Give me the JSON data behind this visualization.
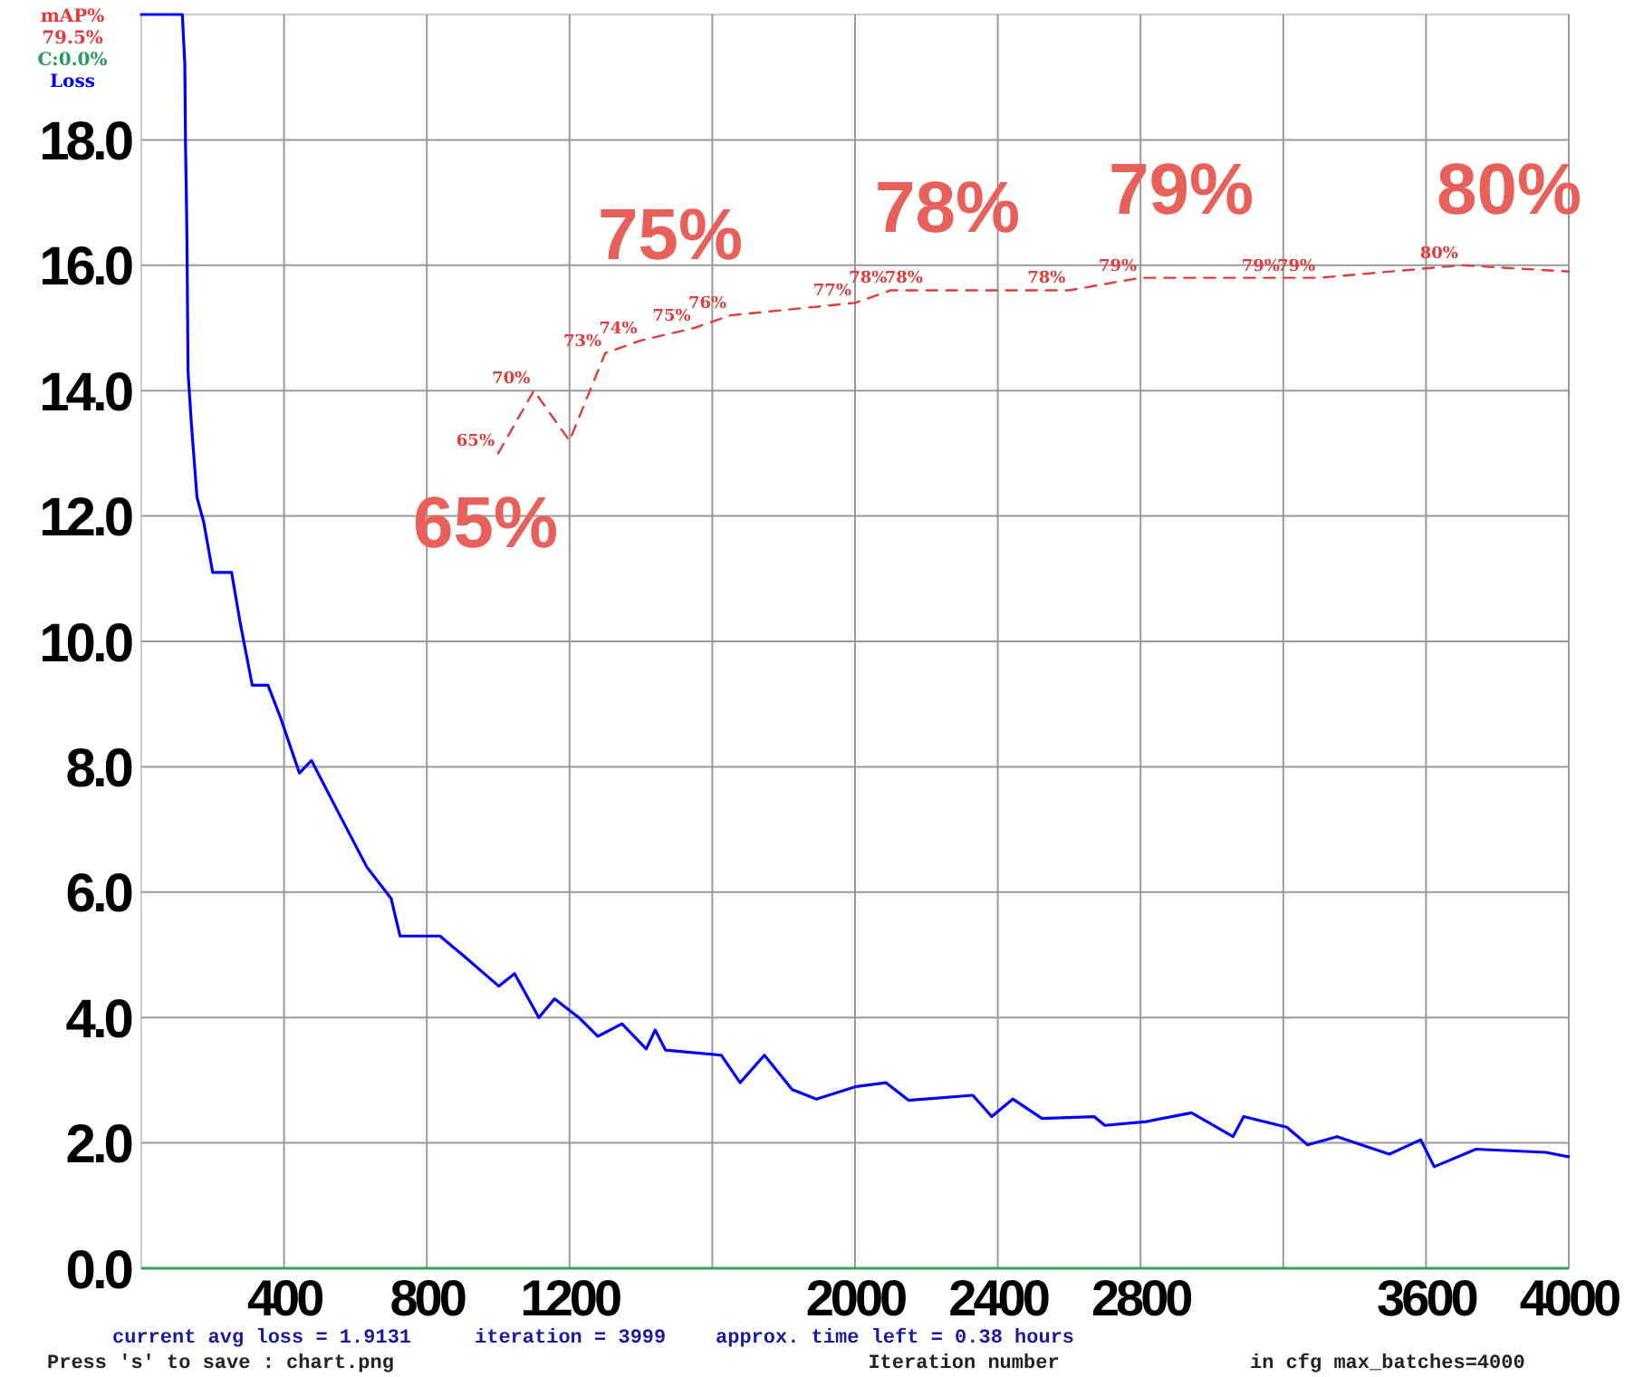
{
  "chart_data": {
    "type": "line",
    "xlabel": "Iteration number",
    "xlim": [
      0,
      4000
    ],
    "xticks": [
      400,
      800,
      1200,
      {
        "value": 1600,
        "label": null
      },
      2000,
      2400,
      2800,
      {
        "value": 3200,
        "label": null
      },
      3600,
      4000
    ],
    "ylim": [
      0,
      20
    ],
    "yticks": [
      {
        "value": 0,
        "label": "0.0"
      },
      {
        "value": 2,
        "label": "2.0"
      },
      {
        "value": 4,
        "label": "4.0"
      },
      {
        "value": 6,
        "label": "6.0"
      },
      {
        "value": 8,
        "label": "8.0"
      },
      {
        "value": 10,
        "label": "10.0"
      },
      {
        "value": 12,
        "label": "12.0"
      },
      {
        "value": 14,
        "label": "14.0"
      },
      {
        "value": 16,
        "label": "16.0"
      },
      {
        "value": 18,
        "label": "18.0"
      }
    ],
    "y2lim": [
      0,
      100
    ],
    "grid": true,
    "legend": "top left",
    "marker": "none",
    "series": [
      {
        "name": "Loss",
        "color": "#0000ff",
        "x": [
          0,
          115,
          122,
          124,
          126,
          128,
          131,
          140,
          156,
          175,
          200,
          253,
          277,
          311,
          355,
          389,
          443,
          477,
          545,
          632,
          700,
          725,
          837,
          900,
          1002,
          1046,
          1114,
          1158,
          1226,
          1279,
          1347,
          1415,
          1440,
          1469,
          1625,
          1678,
          1746,
          1824,
          1892,
          2004,
          2087,
          2150,
          2330,
          2383,
          2442,
          2524,
          2670,
          2700,
          2816,
          2943,
          3059,
          3089,
          3210,
          3268,
          3351,
          3497,
          3585,
          3623,
          3740,
          3935,
          3999
        ],
        "values": [
          20,
          20,
          19.2,
          17.9,
          17.2,
          16.4,
          14.3,
          13.5,
          12.3,
          11.9,
          11.1,
          11.1,
          10.3,
          9.3,
          9.3,
          8.8,
          7.9,
          8.1,
          7.35,
          6.4,
          5.9,
          5.3,
          5.3,
          5.0,
          4.5,
          4.7,
          4.0,
          4.3,
          4.0,
          3.7,
          3.9,
          3.5,
          3.8,
          3.48,
          3.4,
          2.96,
          3.4,
          2.85,
          2.7,
          2.9,
          2.96,
          2.68,
          2.76,
          2.42,
          2.7,
          2.39,
          2.42,
          2.28,
          2.34,
          2.48,
          2.1,
          2.42,
          2.25,
          1.97,
          2.1,
          1.82,
          2.05,
          1.62,
          1.9,
          1.85,
          1.78
        ]
      },
      {
        "name": "mAP%",
        "color": "#e03c3c",
        "axis": "y2",
        "line_style": "dashed",
        "x": [
          1000,
          1100,
          1200,
          1300,
          1400,
          1550,
          1650,
          2000,
          2100,
          2200,
          2600,
          2800,
          3200,
          3300,
          3700,
          4000
        ],
        "values": [
          65,
          70,
          66,
          73,
          74,
          75,
          76,
          77,
          78,
          78,
          78,
          79,
          79,
          79,
          80,
          79.5
        ],
        "value_labels": [
          "65%",
          "70%",
          null,
          "73%",
          "74%",
          "75%",
          "76%",
          "77%",
          "78%",
          "78%",
          "78%",
          "79%",
          "79%",
          "79%",
          "80%",
          null
        ]
      }
    ],
    "annotations": [
      "79.5%",
      "C:0.0%",
      "current avg loss = 1.9131",
      "iteration = 3999",
      "approx. time left = 0.38 hours",
      "Press 's' to save : chart.png",
      "in cfg max_batches=4000",
      "65%",
      "75%",
      "78%",
      "79%",
      "80%"
    ]
  }
}
